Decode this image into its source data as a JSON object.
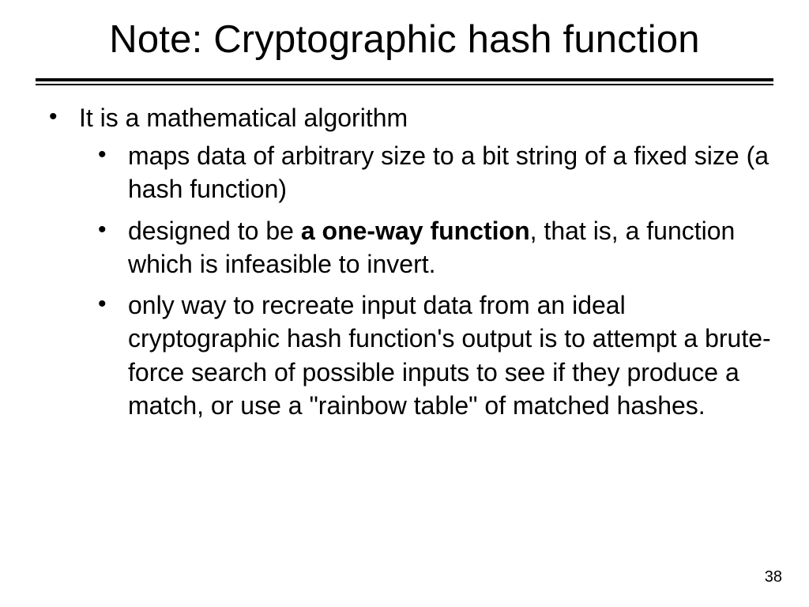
{
  "slide": {
    "title": "Note: Cryptographic hash function",
    "page_number": "38",
    "colors": {
      "background": "#ffffff",
      "text": "#000000",
      "rule": "#000000"
    },
    "typography": {
      "title_fontsize_pt": 37,
      "body_fontsize_pt": 24,
      "font_family": "Arial"
    },
    "bullets": {
      "level1": [
        "It is a mathematical algorithm"
      ],
      "level2": {
        "item1_text": "maps data of arbitrary size to a bit string of a fixed size (a hash function)",
        "item2_prefix": "designed to be ",
        "item2_bold": "a one-way function",
        "item2_suffix": ", that is, a function which is infeasible to invert.",
        "item3_text": "only way to recreate input data from an ideal cryptographic hash function's output is to attempt a brute-force search of possible inputs to see if they produce a match, or use a \"rainbow table\" of matched hashes."
      }
    }
  }
}
